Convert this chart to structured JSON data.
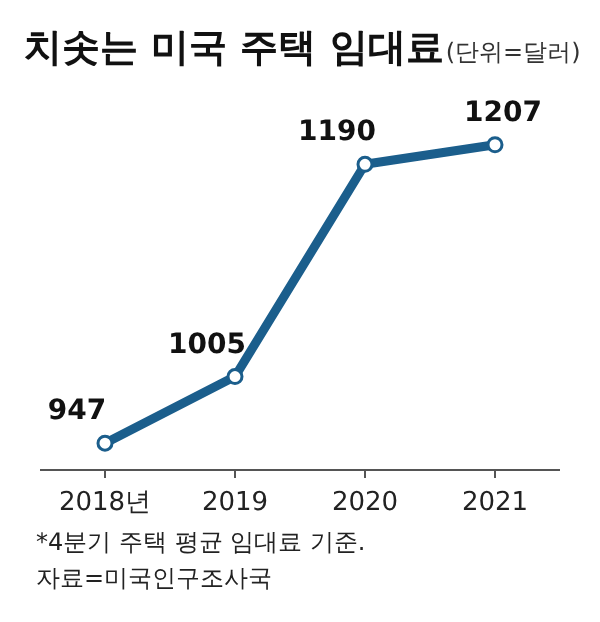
{
  "chart_data": {
    "type": "line",
    "title": "치솟는 미국 주택 임대료",
    "subtitle": "(단위=달러)",
    "categories": [
      "2018년",
      "2019",
      "2020",
      "2021"
    ],
    "series": [
      {
        "color": "#1b5e8c",
        "values": [
          947,
          1005,
          1190,
          1207
        ]
      }
    ],
    "marker": "circle",
    "line_style": "solid",
    "data_labels": true,
    "grid": false,
    "annotations": [
      "*4분기 주택 평균 임대료 기준.",
      "자료=미국인구조사국"
    ]
  }
}
